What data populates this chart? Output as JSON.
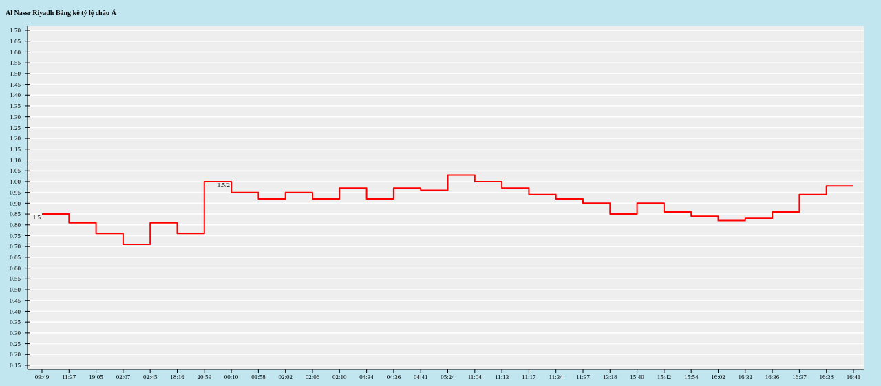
{
  "chart_data": {
    "type": "step",
    "title": "Al Nassr Riyadh Bảng kê tỷ lệ châu Á",
    "categories": [
      "09:49",
      "11:37",
      "19:05",
      "02:07",
      "02:45",
      "18:16",
      "20:59",
      "00:10",
      "01:58",
      "02:02",
      "02:06",
      "02:10",
      "04:34",
      "04:36",
      "04:41",
      "05:24",
      "11:04",
      "11:13",
      "11:17",
      "11:34",
      "11:37",
      "13:18",
      "15:40",
      "15:42",
      "15:54",
      "16:02",
      "16:32",
      "16:36",
      "16:37",
      "16:38",
      "16:41"
    ],
    "series": [
      {
        "color": "#ff0000",
        "values": [
          0.85,
          0.81,
          0.76,
          0.71,
          0.81,
          0.76,
          1.0,
          0.95,
          0.92,
          0.95,
          0.92,
          0.97,
          0.92,
          0.97,
          0.96,
          1.03,
          1.0,
          0.97,
          0.94,
          0.92,
          0.9,
          0.85,
          0.9,
          0.86,
          0.84,
          0.82,
          0.83,
          0.86,
          0.94,
          0.98,
          0.98
        ]
      }
    ],
    "ylim": [
      0.15,
      1.7
    ],
    "yticks": [
      {
        "value": 0.15,
        "label": "0.15"
      },
      {
        "value": 0.2,
        "label": "0.20"
      },
      {
        "value": 0.25,
        "label": "0.25"
      },
      {
        "value": 0.3,
        "label": "0.30"
      },
      {
        "value": 0.35,
        "label": "0.35"
      },
      {
        "value": 0.4,
        "label": "0.40"
      },
      {
        "value": 0.45,
        "label": "0.45"
      },
      {
        "value": 0.5,
        "label": "0.50"
      },
      {
        "value": 0.55,
        "label": "0.55"
      },
      {
        "value": 0.6,
        "label": "0.60"
      },
      {
        "value": 0.65,
        "label": "0.65"
      },
      {
        "value": 0.7,
        "label": "0.70"
      },
      {
        "value": 0.75,
        "label": "0.75"
      },
      {
        "value": 0.8,
        "label": "0.80"
      },
      {
        "value": 0.85,
        "label": "0.85"
      },
      {
        "value": 0.9,
        "label": "0.90"
      },
      {
        "value": 0.95,
        "label": "0.95"
      },
      {
        "value": 1.0,
        "label": "1.00"
      },
      {
        "value": 1.05,
        "label": "1.05"
      },
      {
        "value": 1.1,
        "label": "1.10"
      },
      {
        "value": 1.15,
        "label": "1.15"
      },
      {
        "value": 1.2,
        "label": "1.20"
      },
      {
        "value": 1.25,
        "label": "1.25"
      },
      {
        "value": 1.3,
        "label": "1.30"
      },
      {
        "value": 1.35,
        "label": "1.35"
      },
      {
        "value": 1.4,
        "label": "1.40"
      },
      {
        "value": 1.45,
        "label": "1.45"
      },
      {
        "value": 1.5,
        "label": "1.50"
      },
      {
        "value": 1.55,
        "label": "1.55"
      },
      {
        "value": 1.6,
        "label": "1.60"
      },
      {
        "value": 1.65,
        "label": "1.65"
      },
      {
        "value": 1.7,
        "label": "1.70"
      }
    ],
    "grid": "y",
    "annotations": [
      {
        "text": "1.5",
        "x": "09:49",
        "y": 0.85
      },
      {
        "text": "1.5/2",
        "x": "00:10",
        "y": 1.0
      }
    ]
  }
}
